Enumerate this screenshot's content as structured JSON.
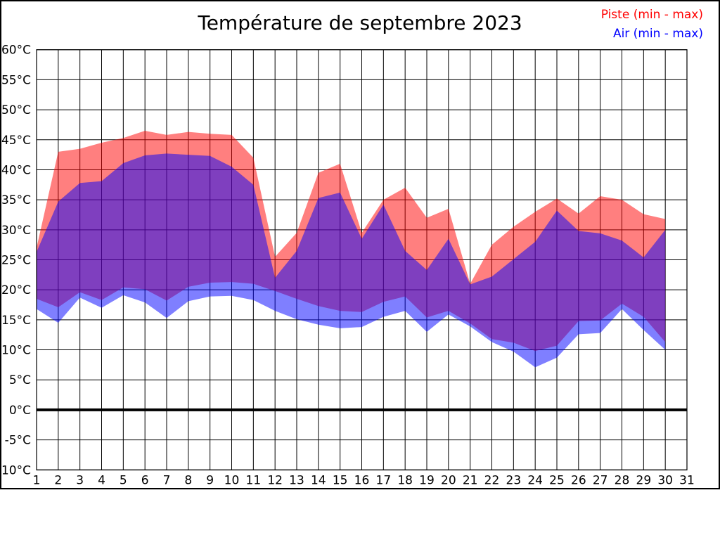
{
  "title": "Température de septembre 2023",
  "legend": [
    {
      "label": "Piste (min - max)",
      "color": "#ff0000"
    },
    {
      "label": "Air (min - max)",
      "color": "#0000ff"
    }
  ],
  "chart_data": {
    "type": "area",
    "title": "Température de septembre 2023",
    "unit": "°C",
    "grid": true,
    "legend_position": "top-right",
    "background": "#ffffff",
    "grid_color": "#000000",
    "zero_line": {
      "value": 0,
      "color": "#000000"
    },
    "x_axis": {
      "min": 1,
      "max": 31,
      "tick_labels": [
        "1",
        "2",
        "3",
        "4",
        "5",
        "6",
        "7",
        "8",
        "9",
        "10",
        "11",
        "12",
        "13",
        "14",
        "15",
        "16",
        "17",
        "18",
        "19",
        "20",
        "21",
        "22",
        "23",
        "24",
        "25",
        "26",
        "27",
        "28",
        "29",
        "30",
        "31"
      ]
    },
    "y_axis": {
      "min": -10,
      "max": 60,
      "step": 5,
      "tick_values": [
        60,
        55,
        50,
        45,
        40,
        35,
        30,
        25,
        20,
        15,
        10,
        5,
        0,
        -5,
        -10
      ],
      "tick_labels": [
        "60°C",
        "55°C",
        "50°C",
        "45°C",
        "40°C",
        "35°C",
        "30°C",
        "25°C",
        "20°C",
        "15°C",
        "10°C",
        "5°C",
        "0°C",
        "-5°C",
        "-10°C"
      ]
    },
    "days": [
      1,
      2,
      3,
      4,
      5,
      6,
      7,
      8,
      9,
      10,
      11,
      12,
      13,
      14,
      15,
      16,
      17,
      18,
      19,
      20,
      21,
      22,
      23,
      24,
      25,
      26,
      27,
      28,
      29,
      30
    ],
    "series": [
      {
        "name": "Piste (min - max)",
        "color": "#ff0000",
        "opacity": 0.5,
        "max": [
          27,
          43,
          43.5,
          44.5,
          45.3,
          46.5,
          45.8,
          46.3,
          46,
          45.8,
          42,
          25.5,
          29.5,
          39.5,
          41,
          29.5,
          35,
          37,
          32,
          33.5,
          21,
          27.5,
          30.5,
          33,
          35.2,
          32.7,
          35.6,
          35,
          32.6,
          31.8
        ],
        "min": [
          18.5,
          17.1,
          19.6,
          18.3,
          20.4,
          20.1,
          18.2,
          20.5,
          21.2,
          21.3,
          21,
          19.8,
          18.5,
          17.3,
          16.5,
          16.3,
          18,
          18.9,
          15.4,
          16.5,
          14.4,
          11.8,
          11.2,
          9.8,
          10.7,
          14.8,
          14.9,
          17.7,
          15.5,
          11.3
        ]
      },
      {
        "name": "Air (min - max)",
        "color": "#0000ff",
        "opacity": 0.5,
        "max": [
          26.3,
          34.7,
          37.8,
          38.1,
          41.1,
          42.4,
          42.7,
          42.5,
          42.3,
          40.5,
          37.5,
          22,
          26.5,
          35.3,
          36.2,
          28.5,
          34.2,
          26.5,
          23.3,
          28.5,
          20.9,
          22.2,
          25.1,
          28,
          33.2,
          29.8,
          29.4,
          28.2,
          25.4,
          30
        ],
        "min": [
          16.8,
          14.5,
          18.7,
          17,
          19.1,
          17.9,
          15.3,
          18.1,
          18.9,
          19,
          18.3,
          16.5,
          15.1,
          14.2,
          13.6,
          13.8,
          15.5,
          16.5,
          13,
          15.9,
          13.9,
          11.3,
          9.7,
          7.1,
          8.7,
          12.6,
          12.8,
          16.8,
          13.3,
          10
        ]
      }
    ]
  }
}
